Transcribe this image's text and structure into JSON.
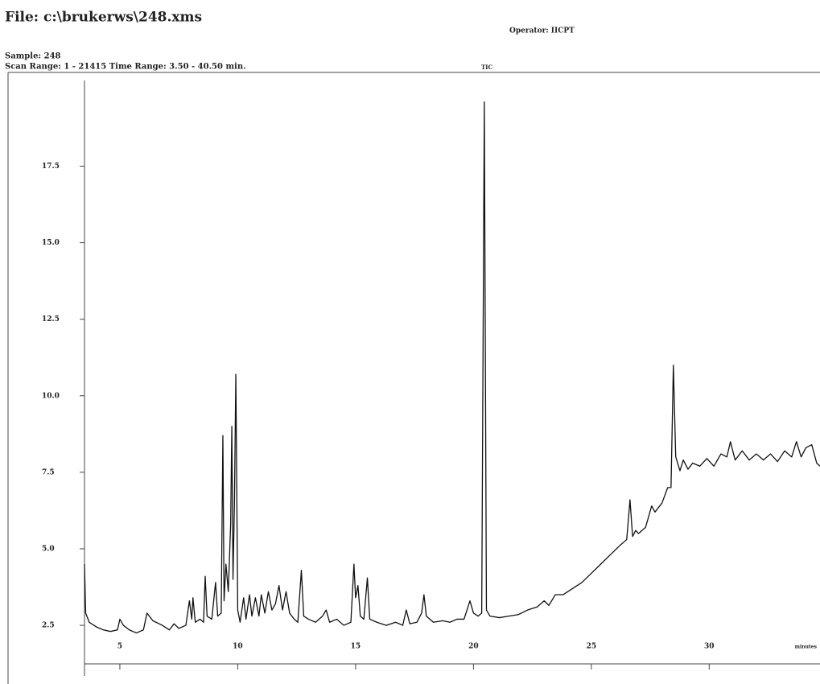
{
  "chart_data": {
    "type": "line",
    "title": "File: c:\\brukerws\\248.xms",
    "operator": "Operator: IICPT",
    "sample": "Sample: 248",
    "scan_range": "Scan Range: 1 - 21415 Time Range: 3.50 - 40.50 min.",
    "xlabel": "minutes",
    "x": [
      3.5,
      3.55,
      3.7,
      4.0,
      4.3,
      4.6,
      4.9,
      5.0,
      5.15,
      5.4,
      5.7,
      6.0,
      6.15,
      6.4,
      6.8,
      7.1,
      7.3,
      7.5,
      7.8,
      7.95,
      8.05,
      8.1,
      8.2,
      8.4,
      8.55,
      8.62,
      8.7,
      8.9,
      9.06,
      9.15,
      9.3,
      9.37,
      9.42,
      9.5,
      9.6,
      9.7,
      9.75,
      9.8,
      9.86,
      9.92,
      10.0,
      10.1,
      10.25,
      10.35,
      10.5,
      10.6,
      10.75,
      10.9,
      11.0,
      11.15,
      11.3,
      11.45,
      11.6,
      11.75,
      11.9,
      12.05,
      12.2,
      12.4,
      12.55,
      12.7,
      12.8,
      13.0,
      13.3,
      13.6,
      13.75,
      13.9,
      14.2,
      14.5,
      14.8,
      14.93,
      15.0,
      15.1,
      15.2,
      15.35,
      15.5,
      15.6,
      15.9,
      16.3,
      16.7,
      17.0,
      17.15,
      17.3,
      17.6,
      17.8,
      17.9,
      18.0,
      18.3,
      18.7,
      19.0,
      19.3,
      19.6,
      19.85,
      20.0,
      20.2,
      20.35,
      20.46,
      20.55,
      20.7,
      21.1,
      21.5,
      21.9,
      22.3,
      22.7,
      23.0,
      23.2,
      23.47,
      23.8,
      24.2,
      24.6,
      25.0,
      25.4,
      25.8,
      26.2,
      26.5,
      26.64,
      26.75,
      26.88,
      27.0,
      27.3,
      27.56,
      27.7,
      28.0,
      28.24,
      28.38,
      28.48,
      28.58,
      28.76,
      28.9,
      29.1,
      29.3,
      29.6,
      29.9,
      30.2,
      30.5,
      30.75,
      30.9,
      31.1,
      31.4,
      31.7,
      32.0,
      32.3,
      32.6,
      32.9,
      33.2,
      33.5,
      33.7,
      33.9,
      34.1,
      34.35,
      34.56,
      34.7
    ],
    "series": [
      {
        "name": "TIC",
        "color": "#111111",
        "values": [
          4.5,
          2.9,
          2.6,
          2.45,
          2.35,
          2.3,
          2.35,
          2.7,
          2.5,
          2.35,
          2.25,
          2.35,
          2.9,
          2.65,
          2.5,
          2.35,
          2.55,
          2.4,
          2.5,
          3.3,
          2.7,
          3.4,
          2.6,
          2.7,
          2.6,
          4.1,
          2.8,
          2.7,
          3.9,
          2.8,
          2.9,
          8.7,
          3.3,
          4.5,
          3.6,
          5.8,
          9.0,
          4.0,
          6.5,
          10.7,
          3.0,
          2.6,
          3.4,
          2.7,
          3.5,
          2.8,
          3.4,
          2.8,
          3.5,
          2.9,
          3.6,
          3.0,
          3.2,
          3.8,
          3.0,
          3.6,
          2.9,
          2.7,
          2.6,
          4.3,
          2.8,
          2.7,
          2.6,
          2.8,
          3.0,
          2.6,
          2.7,
          2.5,
          2.6,
          4.5,
          3.4,
          3.8,
          2.8,
          2.7,
          4.05,
          2.7,
          2.6,
          2.5,
          2.6,
          2.5,
          3.0,
          2.55,
          2.6,
          2.9,
          3.5,
          2.8,
          2.6,
          2.65,
          2.6,
          2.7,
          2.7,
          3.3,
          2.9,
          2.8,
          2.9,
          19.6,
          3.0,
          2.8,
          2.75,
          2.8,
          2.85,
          3.0,
          3.1,
          3.3,
          3.15,
          3.5,
          3.5,
          3.7,
          3.9,
          4.2,
          4.5,
          4.8,
          5.1,
          5.3,
          6.6,
          5.4,
          5.6,
          5.5,
          5.7,
          6.4,
          6.2,
          6.5,
          7.0,
          7.0,
          11.0,
          8.0,
          7.55,
          7.9,
          7.6,
          7.8,
          7.7,
          7.95,
          7.7,
          8.1,
          8.0,
          8.5,
          7.9,
          8.2,
          7.9,
          8.1,
          7.9,
          8.1,
          7.85,
          8.2,
          8.0,
          8.5,
          8.0,
          8.3,
          8.4,
          7.8,
          7.7
        ]
      }
    ],
    "xlim": [
      3.5,
      34.7
    ],
    "ylim": [
      1.24,
      20.3
    ],
    "xticks": [
      5,
      10,
      15,
      20,
      25,
      30
    ],
    "yticks": [
      2.5,
      {
        "value": 5,
        "label": "5.0"
      },
      7.5,
      {
        "value": 10,
        "label": "10.0"
      },
      12.5,
      {
        "value": 15,
        "label": "15.0"
      },
      17.5
    ]
  }
}
